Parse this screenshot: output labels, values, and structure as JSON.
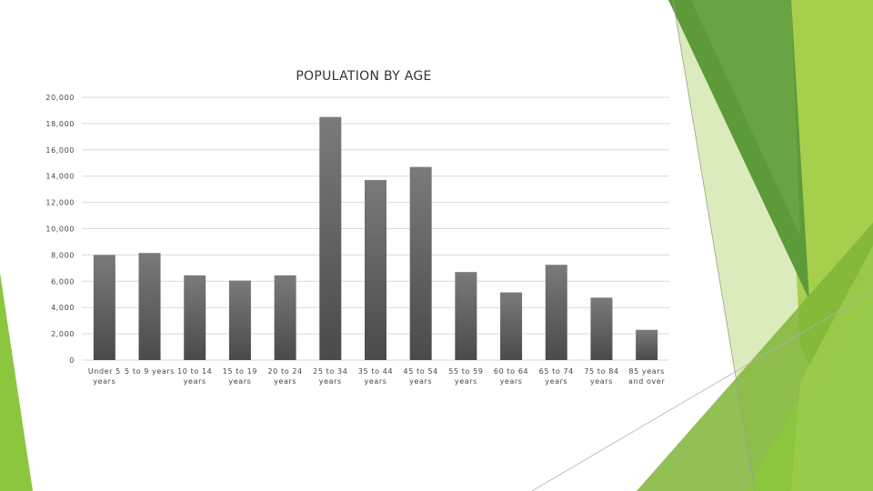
{
  "colors": {
    "bar_top": "#7a7a7a",
    "bar_bottom": "#4a4a4a",
    "grid": "#d9d9d9",
    "green_dark": "#5d9a3a",
    "green_mid": "#7fb536",
    "green_light": "#a6cf4b",
    "green_pale": "#d7e9b4"
  },
  "chart_data": {
    "type": "bar",
    "title": "POPULATION BY AGE",
    "xlabel": "",
    "ylabel": "",
    "ylim": [
      0,
      20000
    ],
    "yticks": [
      0,
      2000,
      4000,
      6000,
      8000,
      10000,
      12000,
      14000,
      16000,
      18000,
      20000
    ],
    "ytick_labels": [
      "0",
      "2,000",
      "4,000",
      "6,000",
      "8,000",
      "10,000",
      "12,000",
      "14,000",
      "16,000",
      "18,000",
      "20,000"
    ],
    "grid": true,
    "legend": "none",
    "categories": [
      [
        "Under 5",
        "years"
      ],
      [
        "5 to 9 years"
      ],
      [
        "10 to 14",
        "years"
      ],
      [
        "15 to 19",
        "years"
      ],
      [
        "20 to 24",
        "years"
      ],
      [
        "25 to 34",
        "years"
      ],
      [
        "35 to 44",
        "years"
      ],
      [
        "45 to 54",
        "years"
      ],
      [
        "55 to 59",
        "years"
      ],
      [
        "60 to 64",
        "years"
      ],
      [
        "65 to 74",
        "years"
      ],
      [
        "75 to 84",
        "years"
      ],
      [
        "85 years",
        "and over"
      ]
    ],
    "values": [
      8000,
      8150,
      6450,
      6050,
      6450,
      18500,
      13700,
      14700,
      6700,
      5150,
      7250,
      4750,
      2300
    ]
  }
}
